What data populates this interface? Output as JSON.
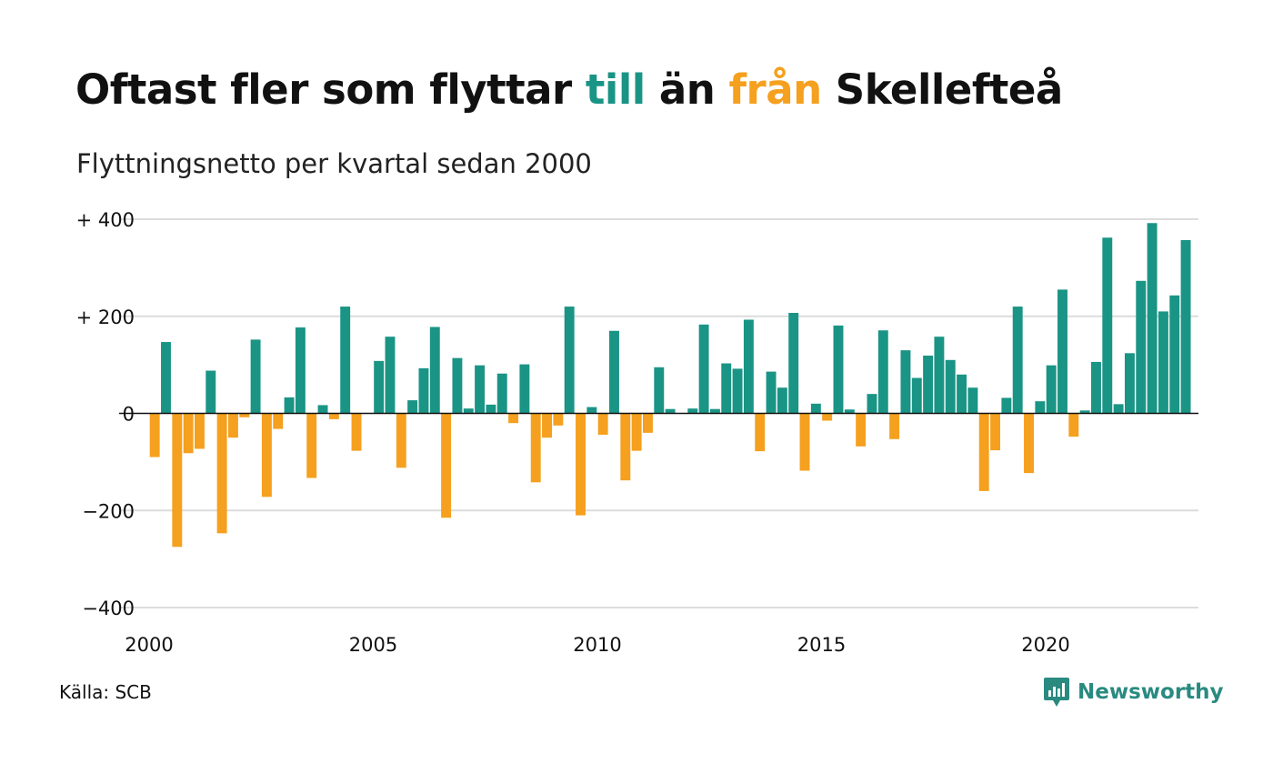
{
  "title": {
    "part1": "Oftast fler som flyttar ",
    "to_word": "till",
    "mid": " än ",
    "from_word": "från",
    "end": " Skellefteå"
  },
  "subtitle": "Flyttningsnetto per kvartal sedan 2000",
  "source": "Källa: SCB",
  "brand": "Newsworthy",
  "colors": {
    "positive": "#1a9485",
    "negative": "#f5a01e",
    "title_to": "#1a9485",
    "title_from": "#f5a01e",
    "brand": "#2a8a80"
  },
  "chart_data": {
    "type": "bar",
    "title": "Oftast fler som flyttar till än från Skellefteå",
    "subtitle": "Flyttningsnetto per kvartal sedan 2000",
    "ylim": [
      -400,
      400
    ],
    "xlim": [
      2000,
      2023.5
    ],
    "y_ticks": [
      {
        "value": 400,
        "label": "+ 400"
      },
      {
        "value": 200,
        "label": "+ 200"
      },
      {
        "value": 0,
        "label": "0"
      },
      {
        "value": -200,
        "label": "−200"
      },
      {
        "value": -400,
        "label": "−400"
      }
    ],
    "x_ticks": [
      {
        "value": 2000,
        "label": "2000"
      },
      {
        "value": 2005,
        "label": "2005"
      },
      {
        "value": 2010,
        "label": "2010"
      },
      {
        "value": 2015,
        "label": "2015"
      },
      {
        "value": 2020,
        "label": "2020"
      }
    ],
    "start_year": 2000,
    "periods_per_year": 4,
    "grid": true,
    "values": [
      -90,
      147,
      -275,
      -82,
      -73,
      88,
      -247,
      -50,
      -8,
      152,
      -172,
      -32,
      33,
      177,
      -133,
      17,
      -12,
      220,
      -77,
      0,
      108,
      158,
      -112,
      27,
      93,
      178,
      -215,
      114,
      10,
      99,
      18,
      82,
      -20,
      101,
      -142,
      -50,
      -25,
      220,
      -210,
      13,
      -44,
      170,
      -138,
      -77,
      -40,
      95,
      9,
      0,
      10,
      183,
      9,
      103,
      92,
      193,
      -78,
      86,
      53,
      207,
      -118,
      20,
      -15,
      181,
      8,
      -68,
      40,
      171,
      -53,
      130,
      73,
      119,
      158,
      110,
      80,
      53,
      -160,
      -76,
      32,
      220,
      -123,
      25,
      99,
      255,
      -48,
      6,
      106,
      362,
      19,
      124,
      273,
      392,
      210,
      243,
      357
    ]
  }
}
